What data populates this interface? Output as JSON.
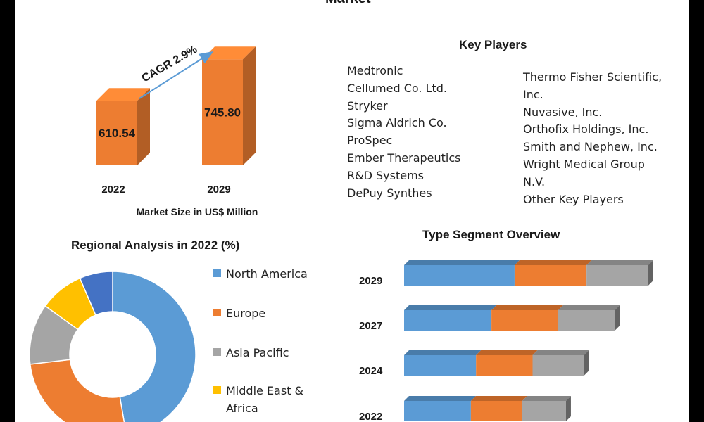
{
  "header": {
    "title_fragment": "Market"
  },
  "market_chart": {
    "axis_label": "Market Size in US$ Million",
    "cagr_label": "CAGR 2.9%"
  },
  "key_players": {
    "title": "Key Players",
    "left_column": [
      "Medtronic",
      "Cellumed Co. Ltd.",
      "Stryker",
      "Sigma Aldrich Co.",
      "ProSpec",
      "Ember Therapeutics",
      "R&D Systems",
      "DePuy Synthes"
    ],
    "right_column": [
      "Thermo Fisher Scientific,",
      "Inc.",
      "Nuvasive, Inc.",
      "Orthofix Holdings, Inc.",
      "Smith and Nephew, Inc.",
      "Wright Medical Group",
      "N.V.",
      "Other Key Players"
    ]
  },
  "regional": {
    "title": "Regional Analysis in 2022 (%)"
  },
  "type_segment": {
    "title": "Type Segment Overview"
  },
  "colors": {
    "orange": "#ED7D31",
    "blue": "#5B9BD5",
    "gray": "#A5A5A5",
    "yellow": "#FFC000",
    "dark_blue": "#4472C4"
  },
  "chart_data": [
    {
      "type": "bar",
      "categories": [
        "2022",
        "2029"
      ],
      "values": [
        610.54,
        745.8
      ],
      "data_labels": [
        "610.54",
        "745.80"
      ],
      "xlabel": "Market Size in US$ Million",
      "annotation": "CAGR 2.9%"
    },
    {
      "type": "pie",
      "title": "Regional Analysis in 2022 (%)",
      "labels": [
        "North America",
        "Europe",
        "Asia Pacific",
        "Middle East & Africa",
        ""
      ],
      "values": [
        44,
        24,
        11,
        8,
        6
      ],
      "colors": [
        "#5B9BD5",
        "#ED7D31",
        "#A5A5A5",
        "#FFC000",
        "#4472C4"
      ],
      "legend_position": "right"
    },
    {
      "type": "bar",
      "orientation": "horizontal",
      "stacked": true,
      "title": "Type Segment Overview",
      "categories": [
        "2029",
        "2027",
        "2024",
        "2022"
      ],
      "series": [
        {
          "values": [
            43,
            34,
            28,
            26
          ],
          "color": "#5B9BD5"
        },
        {
          "values": [
            28,
            26,
            22,
            20
          ],
          "color": "#ED7D31"
        },
        {
          "values": [
            24,
            22,
            20,
            17
          ],
          "color": "#A5A5A5"
        }
      ]
    }
  ]
}
